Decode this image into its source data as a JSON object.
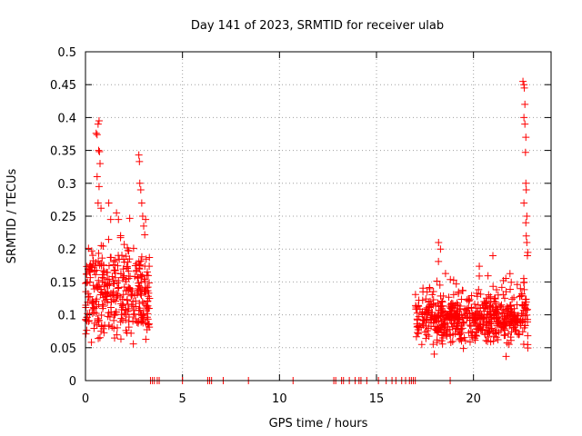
{
  "chart_data": {
    "type": "scatter",
    "title": "Day 141 of 2023, SRMTID for receiver ulab",
    "xlabel": "GPS time / hours",
    "ylabel": "SRMTID / TECUs",
    "xlim": [
      0,
      24
    ],
    "ylim": [
      0,
      0.5
    ],
    "xticks": [
      0,
      5,
      10,
      15,
      20
    ],
    "yticks": [
      0,
      0.05,
      0.1,
      0.15,
      0.2,
      0.25,
      0.3,
      0.35,
      0.4,
      0.45,
      0.5
    ],
    "grid": true,
    "marker": "+",
    "color": "#ff0000",
    "zero_points_x": [
      3.35,
      3.45,
      3.55,
      3.7,
      3.8,
      5.0,
      6.3,
      6.4,
      6.5,
      7.1,
      8.4,
      10.7,
      12.8,
      12.9,
      13.2,
      13.3,
      13.6,
      13.9,
      14.1,
      14.2,
      14.5,
      15.1,
      15.5,
      15.8,
      16.0,
      16.3,
      16.5,
      16.7,
      16.8,
      16.9,
      17.0,
      18.8
    ],
    "clusters": [
      {
        "x_start": 0.0,
        "x_end": 3.3,
        "count": 360,
        "y_min": 0.05,
        "y_max": 0.39,
        "y_center": 0.13,
        "y_spread": 0.045
      },
      {
        "x_start": 17.0,
        "x_end": 22.8,
        "count": 620,
        "y_min": 0.03,
        "y_max": 0.21,
        "y_center": 0.095,
        "y_spread": 0.025
      }
    ],
    "spike_points": [
      {
        "x": 0.55,
        "y": 0.376
      },
      {
        "x": 0.6,
        "y": 0.374
      },
      {
        "x": 0.65,
        "y": 0.39
      },
      {
        "x": 0.7,
        "y": 0.395
      },
      {
        "x": 0.68,
        "y": 0.35
      },
      {
        "x": 0.72,
        "y": 0.348
      },
      {
        "x": 0.75,
        "y": 0.33
      },
      {
        "x": 0.6,
        "y": 0.31
      },
      {
        "x": 0.7,
        "y": 0.295
      },
      {
        "x": 0.65,
        "y": 0.27
      },
      {
        "x": 0.8,
        "y": 0.262
      },
      {
        "x": 2.75,
        "y": 0.343
      },
      {
        "x": 2.78,
        "y": 0.333
      },
      {
        "x": 2.8,
        "y": 0.3
      },
      {
        "x": 2.85,
        "y": 0.29
      },
      {
        "x": 2.9,
        "y": 0.27
      },
      {
        "x": 2.95,
        "y": 0.25
      },
      {
        "x": 3.0,
        "y": 0.235
      },
      {
        "x": 3.1,
        "y": 0.245
      },
      {
        "x": 22.55,
        "y": 0.455
      },
      {
        "x": 22.6,
        "y": 0.45
      },
      {
        "x": 22.62,
        "y": 0.445
      },
      {
        "x": 22.65,
        "y": 0.42
      },
      {
        "x": 22.6,
        "y": 0.4
      },
      {
        "x": 22.65,
        "y": 0.39
      },
      {
        "x": 22.7,
        "y": 0.37
      },
      {
        "x": 22.68,
        "y": 0.347
      },
      {
        "x": 22.7,
        "y": 0.3
      },
      {
        "x": 22.72,
        "y": 0.29
      },
      {
        "x": 22.6,
        "y": 0.27
      },
      {
        "x": 22.75,
        "y": 0.25
      },
      {
        "x": 22.7,
        "y": 0.24
      },
      {
        "x": 22.72,
        "y": 0.22
      },
      {
        "x": 22.75,
        "y": 0.21
      },
      {
        "x": 22.8,
        "y": 0.195
      },
      {
        "x": 22.78,
        "y": 0.19
      },
      {
        "x": 18.2,
        "y": 0.21
      },
      {
        "x": 18.3,
        "y": 0.2
      },
      {
        "x": 21.0,
        "y": 0.19
      },
      {
        "x": 1.2,
        "y": 0.27
      },
      {
        "x": 1.3,
        "y": 0.245
      },
      {
        "x": 1.6,
        "y": 0.255
      },
      {
        "x": 1.7,
        "y": 0.245
      }
    ]
  }
}
